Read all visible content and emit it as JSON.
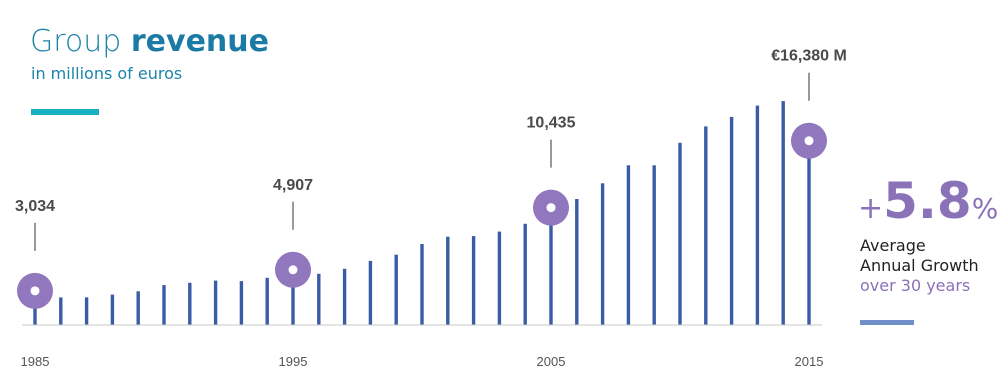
{
  "header": {
    "title_prefix": "Group",
    "title_bold": "revenue",
    "subtitle": "in millions of euros"
  },
  "growth": {
    "plus": "+",
    "value": "5.8",
    "unit": "%",
    "line1": "Average",
    "line2": "Annual Growth",
    "line3": "over 30 years"
  },
  "colors": {
    "bar": "#3a5ba5",
    "marker": "#9177bd",
    "title": "#1b84a8",
    "accent_rule": "#1ab0c0",
    "growth": "#8a72b8",
    "axis": "#c8c8c8"
  },
  "chart_data": {
    "type": "bar",
    "title": "Group revenue",
    "subtitle": "in millions of euros",
    "x": [
      1985,
      1986,
      1987,
      1988,
      1989,
      1990,
      1991,
      1992,
      1993,
      1994,
      1995,
      1996,
      1997,
      1998,
      1999,
      2000,
      2001,
      2002,
      2003,
      2004,
      2005,
      2006,
      2007,
      2008,
      2009,
      2010,
      2011,
      2012,
      2013,
      2014,
      2015
    ],
    "values": [
      3034,
      2450,
      2450,
      2700,
      3000,
      3550,
      3750,
      3950,
      3900,
      4200,
      4907,
      4550,
      5000,
      5700,
      6250,
      7200,
      7850,
      7900,
      8300,
      9000,
      10435,
      11200,
      12600,
      14200,
      14200,
      16200,
      17650,
      18500,
      19500,
      19900,
      16380
    ],
    "x_tick_labels": [
      "1985",
      "1995",
      "2005",
      "2015"
    ],
    "highlighted": [
      {
        "x": 1985,
        "label": "3,034"
      },
      {
        "x": 1995,
        "label": "4,907"
      },
      {
        "x": 2005,
        "label": "10,435"
      },
      {
        "x": 2015,
        "label": "€16,380 M"
      }
    ],
    "grid": false
  }
}
